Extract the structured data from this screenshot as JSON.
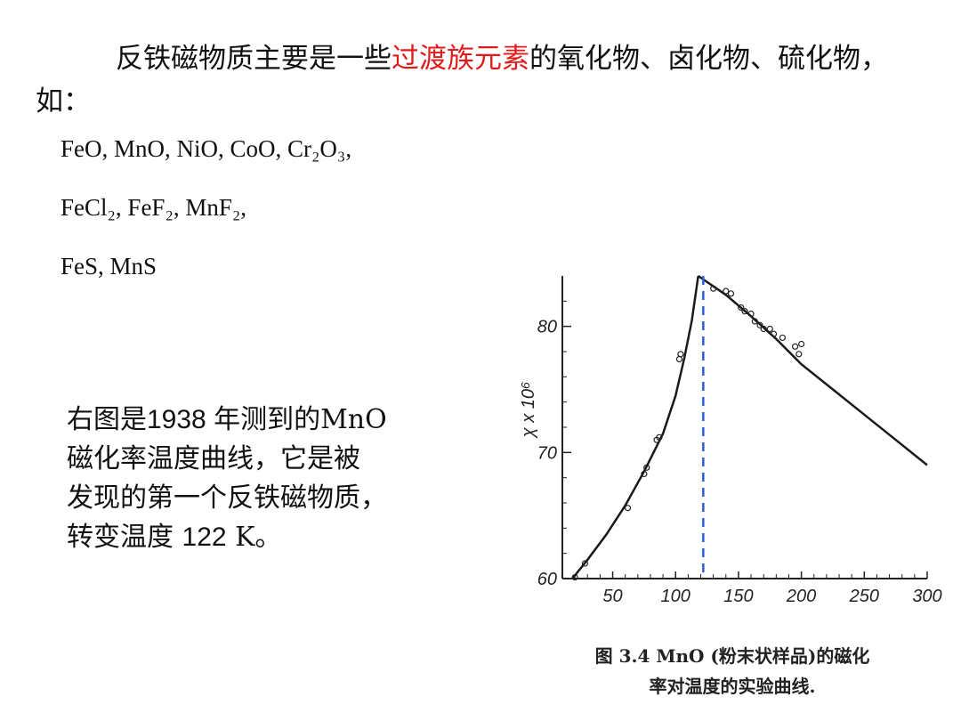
{
  "intro": {
    "part1": "反铁磁物质主要是一些",
    "highlight": "过渡族元素",
    "part2": "的氧化物、卤化物、硫化物，",
    "part3": " 如："
  },
  "formulas": {
    "line1": "FeO, MnO, NiO,  CoO, Cr₂O₃,",
    "line2": "FeCl₂, FeF₂, MnF₂,",
    "line3": "FeS, MnS"
  },
  "description": {
    "line1a": "右图是",
    "line1b": "1938 年测到的",
    "line1c": "MnO",
    "line2": "磁化率温度曲线，它是被",
    "line3": "发现的第一个反铁磁物质，",
    "line4a": "转变温度 ",
    "line4b": "122",
    "line4c": " K。"
  },
  "chart_data": {
    "type": "line",
    "ylabel": "χ x 10⁶",
    "xlim": [
      10,
      300
    ],
    "ylim": [
      60,
      84
    ],
    "x_ticks": [
      50,
      100,
      150,
      200,
      250,
      300
    ],
    "y_ticks": [
      60,
      70,
      80
    ],
    "transition_temperature": 122,
    "series": [
      {
        "x": [
          18,
          30,
          45,
          60,
          75,
          90,
          100,
          107,
          113,
          118
        ],
        "values": [
          60,
          61.5,
          63.5,
          65.8,
          68.5,
          71.5,
          74.5,
          77.5,
          80.5,
          84
        ]
      },
      {
        "x": [
          118,
          140,
          160,
          180,
          200,
          225,
          250,
          275,
          300
        ],
        "values": [
          84,
          82.5,
          80.8,
          79,
          77,
          75,
          73,
          71,
          69
        ]
      }
    ],
    "points": [
      {
        "x": 20,
        "y": 60.1
      },
      {
        "x": 28,
        "y": 61.2
      },
      {
        "x": 62,
        "y": 65.6
      },
      {
        "x": 75,
        "y": 68.3
      },
      {
        "x": 77,
        "y": 68.8
      },
      {
        "x": 85,
        "y": 71
      },
      {
        "x": 87,
        "y": 71.2
      },
      {
        "x": 103,
        "y": 77.4
      },
      {
        "x": 104,
        "y": 77.8
      },
      {
        "x": 130,
        "y": 83
      },
      {
        "x": 140,
        "y": 82.8
      },
      {
        "x": 144,
        "y": 82.6
      },
      {
        "x": 152,
        "y": 81.5
      },
      {
        "x": 155,
        "y": 81.2
      },
      {
        "x": 160,
        "y": 81
      },
      {
        "x": 163,
        "y": 80.4
      },
      {
        "x": 167,
        "y": 80.1
      },
      {
        "x": 170,
        "y": 79.8
      },
      {
        "x": 175,
        "y": 79.8
      },
      {
        "x": 178,
        "y": 79.4
      },
      {
        "x": 185,
        "y": 79.1
      },
      {
        "x": 195,
        "y": 78.4
      },
      {
        "x": 198,
        "y": 77.8
      },
      {
        "x": 200,
        "y": 78.6
      }
    ],
    "axis_color": "#222222",
    "line_color": "#1a1a1a",
    "dashed_line_color": "#2a5fd6"
  },
  "caption": {
    "line1": "图 3.4   MnO (粉末状样品)的磁化",
    "line2": "率对温度的实验曲线."
  }
}
